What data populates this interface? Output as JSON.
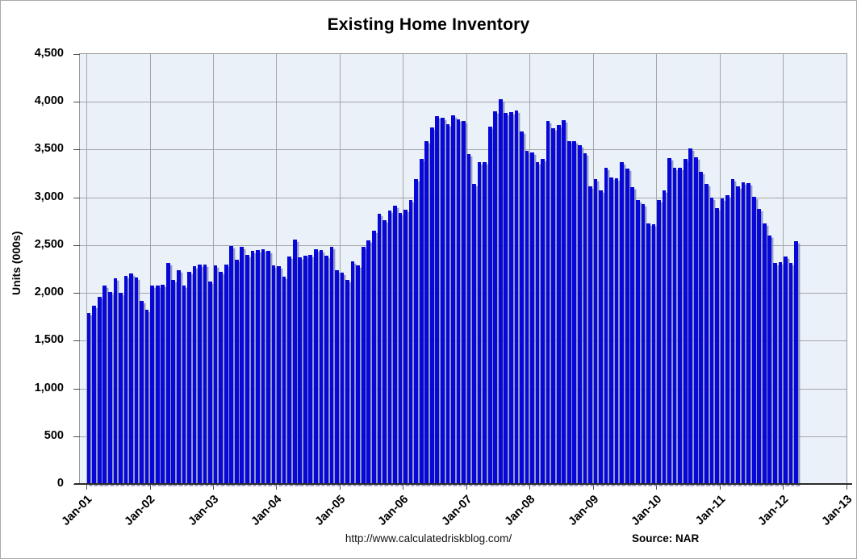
{
  "title": "Existing Home Inventory",
  "y_axis": {
    "label": "Units (000s)",
    "tick_labels": [
      "4,500",
      "4,000",
      "3,500",
      "3,000",
      "2,500",
      "2,000",
      "1,500",
      "1,000",
      "500",
      "0"
    ],
    "max": 4500,
    "min": 0,
    "step": 500
  },
  "x_axis": {
    "tick_labels": [
      "Jan-01",
      "Jan-02",
      "Jan-03",
      "Jan-04",
      "Jan-05",
      "Jan-06",
      "Jan-07",
      "Jan-08",
      "Jan-09",
      "Jan-10",
      "Jan-11",
      "Jan-12",
      "Jan-13"
    ]
  },
  "footer": {
    "url": "http://www.calculatedriskblog.com/",
    "source": "Source: NAR"
  },
  "colors": {
    "bar": "#0707d8",
    "bar_shadow": "#8e93c4",
    "plot_background": "#eaf1f8",
    "gridline": "#a6a6a6",
    "text": "#000000"
  },
  "chart_data": {
    "type": "bar",
    "title": "Existing Home Inventory",
    "xlabel": "",
    "ylabel": "Units (000s)",
    "ylim": [
      0,
      4500
    ],
    "grid": true,
    "legend": "none",
    "start_month": "2001-01",
    "end_month": "2012-03",
    "frequency": "monthly",
    "x_tick_labels": [
      "Jan-01",
      "Jan-02",
      "Jan-03",
      "Jan-04",
      "Jan-05",
      "Jan-06",
      "Jan-07",
      "Jan-08",
      "Jan-09",
      "Jan-10",
      "Jan-11",
      "Jan-12",
      "Jan-13"
    ],
    "series": [
      {
        "name": "Existing Home Inventory (000s)",
        "values_by_year": {
          "2001": [
            1790,
            1870,
            1960,
            2080,
            2010,
            2150,
            2000,
            2180,
            2200,
            2160,
            1920,
            1820
          ],
          "2002": [
            2080,
            2080,
            2090,
            2310,
            2140,
            2240,
            2080,
            2220,
            2280,
            2300,
            2300,
            2120
          ],
          "2003": [
            2290,
            2220,
            2300,
            2490,
            2350,
            2480,
            2400,
            2440,
            2450,
            2460,
            2440,
            2290
          ],
          "2004": [
            2280,
            2170,
            2380,
            2560,
            2370,
            2390,
            2400,
            2460,
            2450,
            2390,
            2480,
            2240
          ],
          "2005": [
            2210,
            2140,
            2330,
            2290,
            2480,
            2550,
            2650,
            2830,
            2760,
            2860,
            2910,
            2840
          ],
          "2006": [
            2870,
            2970,
            3190,
            3400,
            3590,
            3730,
            3850,
            3830,
            3770,
            3860,
            3820,
            3800
          ],
          "2007": [
            3450,
            3140,
            3370,
            3370,
            3740,
            3900,
            4030,
            3880,
            3890,
            3910,
            3690,
            3490
          ],
          "2008": [
            3470,
            3370,
            3400,
            3800,
            3720,
            3760,
            3810,
            3590,
            3590,
            3550,
            3460,
            3120
          ],
          "2009": [
            3190,
            3070,
            3310,
            3210,
            3200,
            3370,
            3300,
            3110,
            2970,
            2930,
            2730,
            2720
          ],
          "2010": [
            2970,
            3070,
            3410,
            3310,
            3310,
            3400,
            3510,
            3420,
            3270,
            3140,
            3000,
            2890
          ],
          "2011": [
            2990,
            3020,
            3190,
            3120,
            3160,
            3150,
            3010,
            2880,
            2730,
            2600,
            2310,
            2320
          ],
          "2012": [
            2380,
            2310,
            2540
          ]
        }
      }
    ]
  }
}
